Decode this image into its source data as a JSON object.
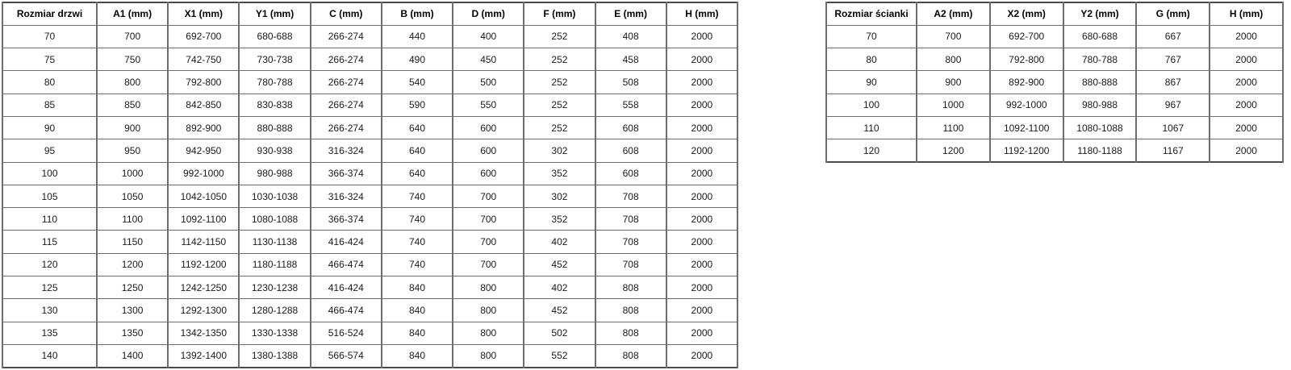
{
  "colors": {
    "background": "#ffffff",
    "border_outer": "#4a4a4a",
    "border_inner": "#6e6e6e",
    "text": "#1a1a1a"
  },
  "door_table": {
    "headers": [
      "Rozmiar drzwi",
      "A1 (mm)",
      "X1 (mm)",
      "Y1 (mm)",
      "C (mm)",
      "B (mm)",
      "D (mm)",
      "F (mm)",
      "E (mm)",
      "H (mm)"
    ],
    "rows": [
      [
        "70",
        "700",
        "692-700",
        "680-688",
        "266-274",
        "440",
        "400",
        "252",
        "408",
        "2000"
      ],
      [
        "75",
        "750",
        "742-750",
        "730-738",
        "266-274",
        "490",
        "450",
        "252",
        "458",
        "2000"
      ],
      [
        "80",
        "800",
        "792-800",
        "780-788",
        "266-274",
        "540",
        "500",
        "252",
        "508",
        "2000"
      ],
      [
        "85",
        "850",
        "842-850",
        "830-838",
        "266-274",
        "590",
        "550",
        "252",
        "558",
        "2000"
      ],
      [
        "90",
        "900",
        "892-900",
        "880-888",
        "266-274",
        "640",
        "600",
        "252",
        "608",
        "2000"
      ],
      [
        "95",
        "950",
        "942-950",
        "930-938",
        "316-324",
        "640",
        "600",
        "302",
        "608",
        "2000"
      ],
      [
        "100",
        "1000",
        "992-1000",
        "980-988",
        "366-374",
        "640",
        "600",
        "352",
        "608",
        "2000"
      ],
      [
        "105",
        "1050",
        "1042-1050",
        "1030-1038",
        "316-324",
        "740",
        "700",
        "302",
        "708",
        "2000"
      ],
      [
        "110",
        "1100",
        "1092-1100",
        "1080-1088",
        "366-374",
        "740",
        "700",
        "352",
        "708",
        "2000"
      ],
      [
        "115",
        "1150",
        "1142-1150",
        "1130-1138",
        "416-424",
        "740",
        "700",
        "402",
        "708",
        "2000"
      ],
      [
        "120",
        "1200",
        "1192-1200",
        "1180-1188",
        "466-474",
        "740",
        "700",
        "452",
        "708",
        "2000"
      ],
      [
        "125",
        "1250",
        "1242-1250",
        "1230-1238",
        "416-424",
        "840",
        "800",
        "402",
        "808",
        "2000"
      ],
      [
        "130",
        "1300",
        "1292-1300",
        "1280-1288",
        "466-474",
        "840",
        "800",
        "452",
        "808",
        "2000"
      ],
      [
        "135",
        "1350",
        "1342-1350",
        "1330-1338",
        "516-524",
        "840",
        "800",
        "502",
        "808",
        "2000"
      ],
      [
        "140",
        "1400",
        "1392-1400",
        "1380-1388",
        "566-574",
        "840",
        "800",
        "552",
        "808",
        "2000"
      ]
    ]
  },
  "wall_table": {
    "headers": [
      "Rozmiar ścianki",
      "A2 (mm)",
      "X2 (mm)",
      "Y2 (mm)",
      "G (mm)",
      "H (mm)"
    ],
    "rows": [
      [
        "70",
        "700",
        "692-700",
        "680-688",
        "667",
        "2000"
      ],
      [
        "80",
        "800",
        "792-800",
        "780-788",
        "767",
        "2000"
      ],
      [
        "90",
        "900",
        "892-900",
        "880-888",
        "867",
        "2000"
      ],
      [
        "100",
        "1000",
        "992-1000",
        "980-988",
        "967",
        "2000"
      ],
      [
        "110",
        "1100",
        "1092-1100",
        "1080-1088",
        "1067",
        "2000"
      ],
      [
        "120",
        "1200",
        "1192-1200",
        "1180-1188",
        "1167",
        "2000"
      ]
    ]
  }
}
